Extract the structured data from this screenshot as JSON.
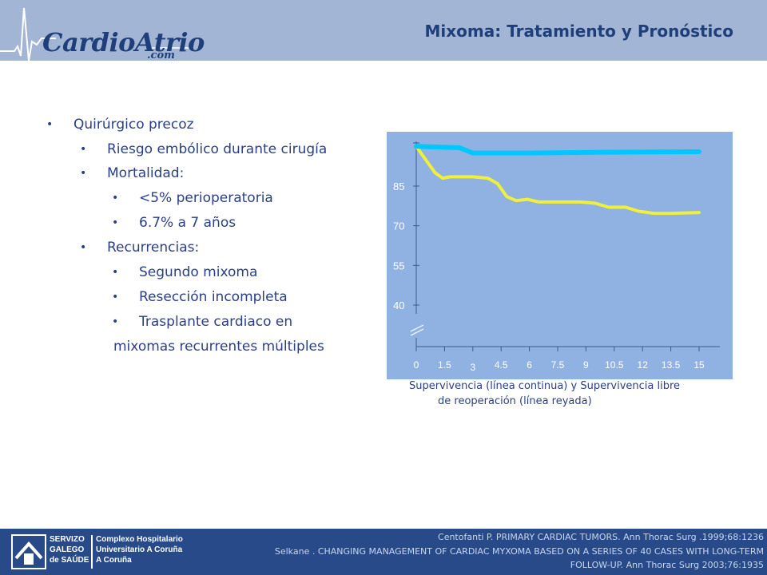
{
  "header": {
    "logo_text": "CardioAtrio",
    "logo_suffix": ".com",
    "title": "Mixoma: Tratamiento y Pronóstico"
  },
  "bullets": [
    {
      "level": 1,
      "text": "Quirúrgico precoz"
    },
    {
      "level": 2,
      "text": "Riesgo embólico durante cirugía"
    },
    {
      "level": 2,
      "text": "Mortalidad:"
    },
    {
      "level": 3,
      "text": "<5% perioperatoria"
    },
    {
      "level": 3,
      "text": "6.7% a 7 años"
    },
    {
      "level": 2,
      "text": "Recurrencias:"
    },
    {
      "level": 3,
      "text": "Segundo mixoma"
    },
    {
      "level": 3,
      "text": "Resección incompleta"
    },
    {
      "level": 3,
      "text": "Trasplante cardiaco en"
    },
    {
      "level": 0,
      "text": "mixomas recurrentes múltiples"
    }
  ],
  "chart_data": {
    "type": "line",
    "title": "",
    "xlabel": "",
    "ylabel": "",
    "x_ticks": [
      "0",
      "1.5",
      "3",
      "4.5",
      "6",
      "7.5",
      "9",
      "10.5",
      "12",
      "13.5",
      "15"
    ],
    "y_ticks": [
      "40",
      "55",
      "70",
      "85"
    ],
    "ylim": [
      40,
      100
    ],
    "xlim": [
      0,
      15
    ],
    "axis_break": true,
    "series": [
      {
        "color": "#00c8ff",
        "points": [
          [
            0,
            100
          ],
          [
            2.3,
            99.5
          ],
          [
            3,
            97.5
          ],
          [
            6,
            97.5
          ],
          [
            10,
            97.8
          ],
          [
            15,
            98
          ]
        ]
      },
      {
        "color": "#f0f03c",
        "points": [
          [
            0,
            100
          ],
          [
            0.4,
            96
          ],
          [
            1,
            90
          ],
          [
            1.4,
            88
          ],
          [
            1.8,
            88.5
          ],
          [
            3,
            88.5
          ],
          [
            3.8,
            88
          ],
          [
            4.3,
            86
          ],
          [
            4.8,
            81
          ],
          [
            5.3,
            79.5
          ],
          [
            5.9,
            80
          ],
          [
            6.5,
            79
          ],
          [
            7.6,
            79
          ],
          [
            8.7,
            79
          ],
          [
            9.5,
            78.5
          ],
          [
            10.2,
            77
          ],
          [
            11.1,
            77
          ],
          [
            11.8,
            75.5
          ],
          [
            12.6,
            74.7
          ],
          [
            13.5,
            74.7
          ],
          [
            15,
            75
          ]
        ]
      }
    ]
  },
  "caption": {
    "line1": "Supervivencia (línea continua) y Supervivencia libre",
    "line2": "de reoperación (línea reyada)"
  },
  "footer": {
    "logo_left_1": "SERVIZO",
    "logo_left_2": "GALEGO",
    "logo_left_3": "de SAÚDE",
    "logo_right_1": "Complexo Hospitalario",
    "logo_right_2": "Universitario A Coruña",
    "logo_right_3": "A Coruña",
    "ref1": "Centofanti P. PRIMARY CARDIAC TUMORS. Ann Thorac Surg .1999;68:1236",
    "ref2": "Selkane . CHANGING MANAGEMENT OF CARDIAC MYXOMA BASED ON A SERIES OF 40 CASES WITH LONG-TERM",
    "ref3": "FOLLOW-UP. Ann Thorac Surg 2003;76:1935"
  },
  "colors": {
    "header_bg": "#a3b5d5",
    "title": "#1f3f7a",
    "text": "#2b3f86",
    "chart_bg": "#8fb2e2",
    "footer_bg": "#284a89"
  }
}
